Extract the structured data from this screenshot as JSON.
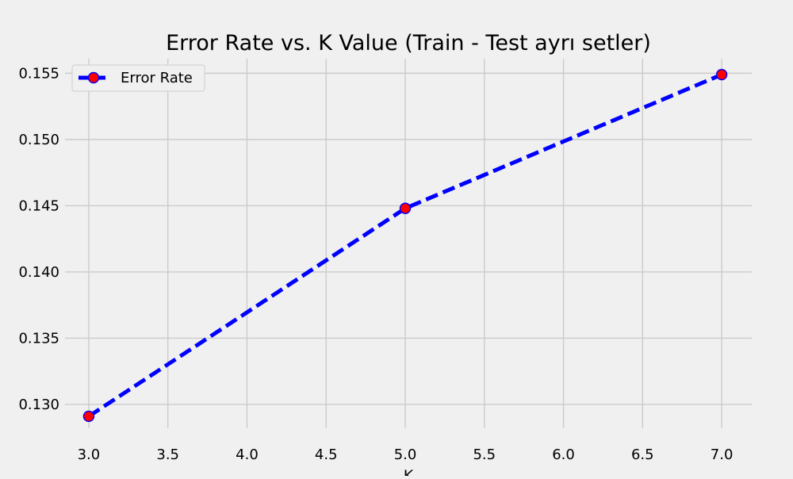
{
  "chart_data": {
    "type": "line",
    "title": "Error Rate vs. K Value (Train - Test ayrı setler)",
    "xlabel": "K",
    "ylabel": "",
    "xlim": [
      2.85,
      7.19
    ],
    "ylim": [
      0.1282,
      0.1561
    ],
    "x_ticks": [
      3.0,
      3.5,
      4.0,
      4.5,
      5.0,
      5.5,
      6.0,
      6.5,
      7.0
    ],
    "y_ticks": [
      0.13,
      0.135,
      0.14,
      0.145,
      0.15,
      0.155
    ],
    "grid": true,
    "legend_position": "top-left",
    "series": [
      {
        "name": "Error Rate",
        "x": [
          3,
          5,
          7
        ],
        "values": [
          0.1291,
          0.1448,
          0.1549
        ],
        "line_color": "#0000ff",
        "line_style": "dashed",
        "marker": "circle",
        "marker_face_color": "#ff0000",
        "marker_edge_color": "#0000ff"
      }
    ]
  }
}
